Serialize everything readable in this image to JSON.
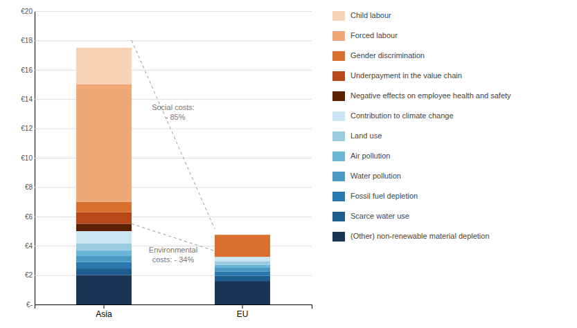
{
  "chart_data": {
    "type": "bar",
    "stacked": true,
    "grid": true,
    "categories": [
      "Asia",
      "EU"
    ],
    "series": [
      {
        "name": "(Other) non-renewable material depletion",
        "color": "#1a3558",
        "values": [
          2.0,
          1.6
        ]
      },
      {
        "name": "Scarce water use",
        "color": "#1e5e8e",
        "values": [
          0.45,
          0.35
        ]
      },
      {
        "name": "Fossil fuel depletion",
        "color": "#2979b0",
        "values": [
          0.45,
          0.3
        ]
      },
      {
        "name": "Water pollution",
        "color": "#4a9ac4",
        "values": [
          0.4,
          0.25
        ]
      },
      {
        "name": "Air pollution",
        "color": "#6ab5d8",
        "values": [
          0.4,
          0.2
        ]
      },
      {
        "name": "Land use",
        "color": "#9acce0",
        "values": [
          0.45,
          0.25
        ]
      },
      {
        "name": "Contribution to climate change",
        "color": "#cce5f2",
        "values": [
          0.85,
          0.3
        ]
      },
      {
        "name": "Negative effects on employee health and safety",
        "color": "#5a2000",
        "values": [
          0.5,
          0.0
        ]
      },
      {
        "name": "Underpayment in the value chain",
        "color": "#b84818",
        "values": [
          0.8,
          0.0
        ]
      },
      {
        "name": "Gender discrimination",
        "color": "#d97030",
        "values": [
          0.7,
          1.5
        ]
      },
      {
        "name": "Forced labour",
        "color": "#f0a878",
        "values": [
          8.0,
          0.0
        ]
      },
      {
        "name": "Child labour",
        "color": "#fad2b8",
        "values": [
          2.5,
          0.0
        ]
      }
    ],
    "ylim": [
      0,
      20
    ],
    "yticks": [
      {
        "value": 0,
        "label": "€-"
      },
      {
        "value": 2,
        "label": "€2"
      },
      {
        "value": 4,
        "label": "€4"
      },
      {
        "value": 6,
        "label": "€6"
      },
      {
        "value": 8,
        "label": "€8"
      },
      {
        "value": 10,
        "label": "€10"
      },
      {
        "value": 12,
        "label": "€12"
      },
      {
        "value": 14,
        "label": "€14"
      },
      {
        "value": 16,
        "label": "€16"
      },
      {
        "value": 18,
        "label": "€18"
      },
      {
        "value": 20,
        "label": "€20"
      }
    ],
    "annotations": [
      {
        "text": "Environmental\ncosts: - 34%",
        "values": [
          5.5,
          3.65
        ]
      },
      {
        "text": "Social costs:\n  - 85%",
        "values": [
          18.0,
          5.15
        ]
      }
    ]
  }
}
